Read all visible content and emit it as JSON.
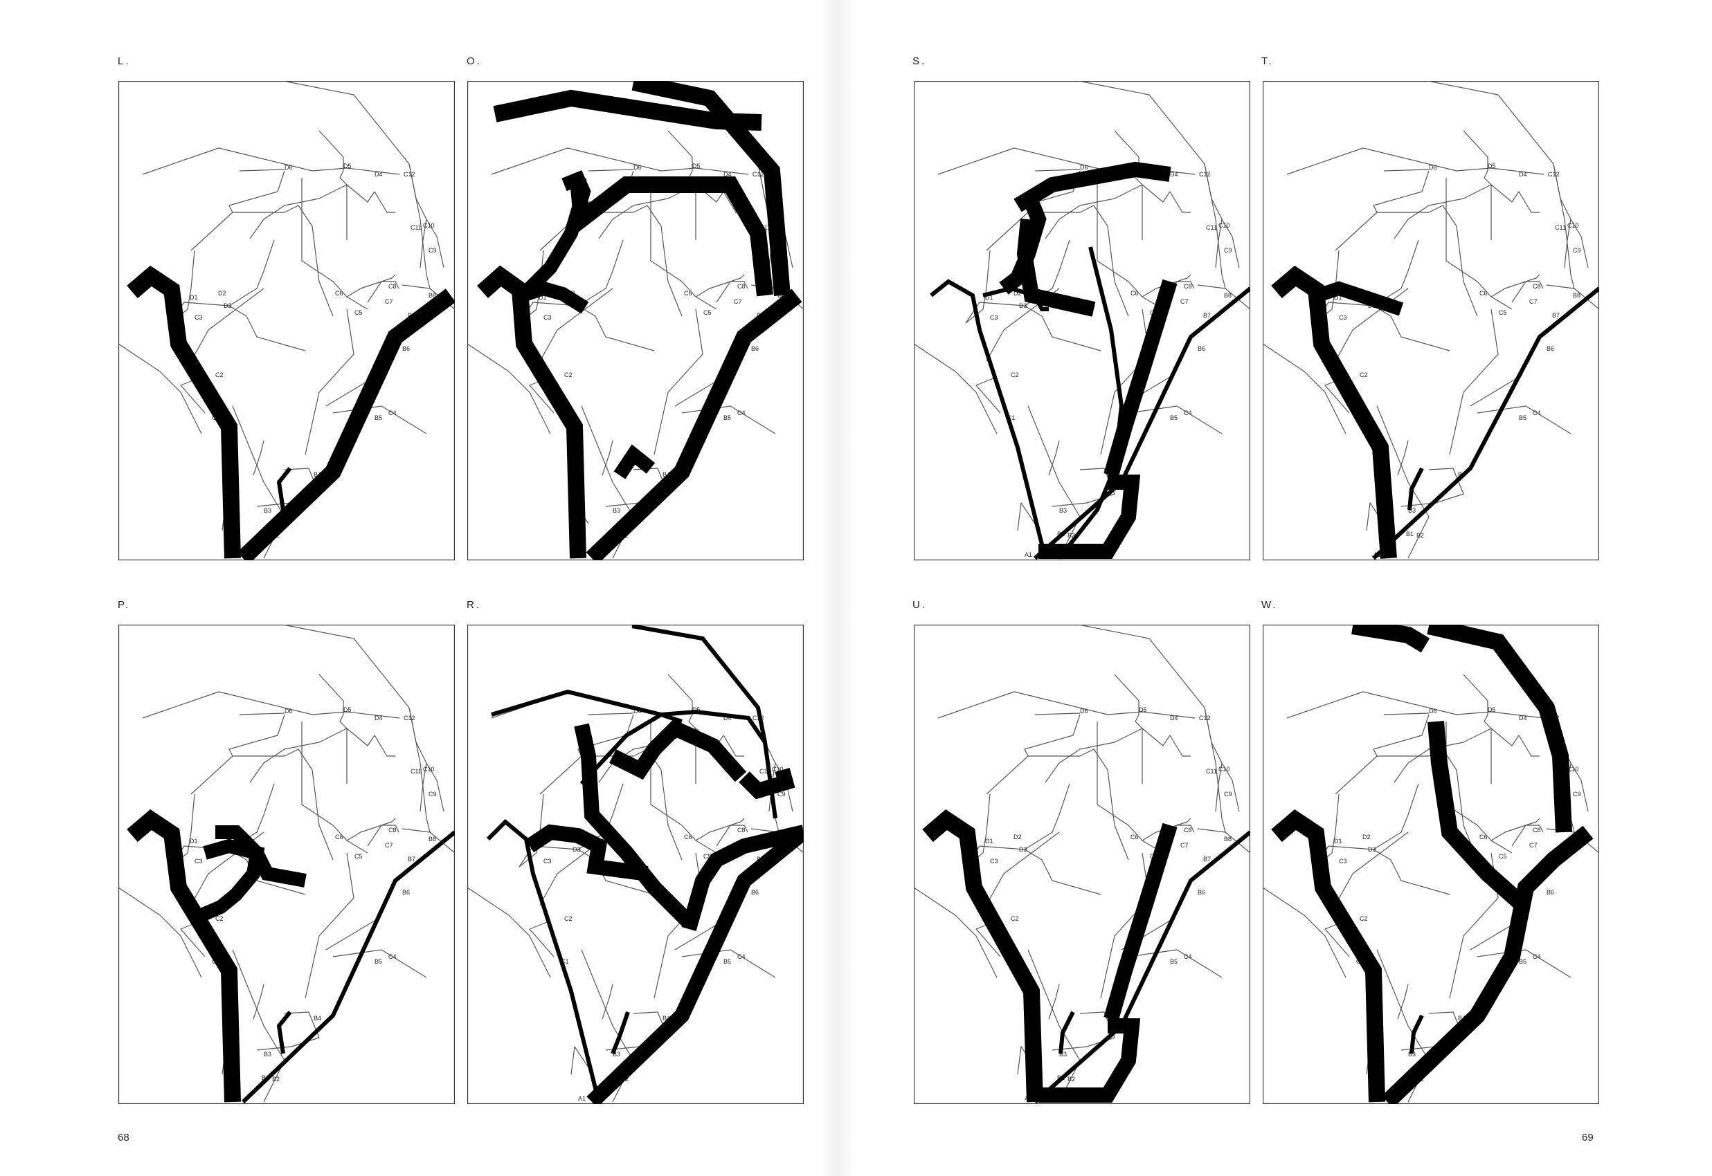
{
  "pages": {
    "left_number": "68",
    "right_number": "69"
  },
  "node_labels": [
    "D6",
    "D5",
    "D4",
    "C12",
    "C11",
    "C10",
    "C9",
    "C8",
    "C7",
    "C6",
    "C5",
    "B8",
    "B7",
    "B6",
    "B5",
    "C4",
    "B4",
    "B3",
    "B2",
    "B1",
    "A1",
    "D1",
    "D2",
    "D3",
    "C3",
    "C2",
    "C1"
  ],
  "panels": [
    {
      "id": "L",
      "label": "L."
    },
    {
      "id": "O",
      "label": "O."
    },
    {
      "id": "S",
      "label": "S."
    },
    {
      "id": "T",
      "label": "T."
    },
    {
      "id": "P",
      "label": "P."
    },
    {
      "id": "R",
      "label": "R."
    },
    {
      "id": "U",
      "label": "U."
    },
    {
      "id": "W",
      "label": "W."
    }
  ],
  "colors": {
    "frame": "#333333",
    "thin_line": "#555555",
    "stroke": "#000000"
  }
}
